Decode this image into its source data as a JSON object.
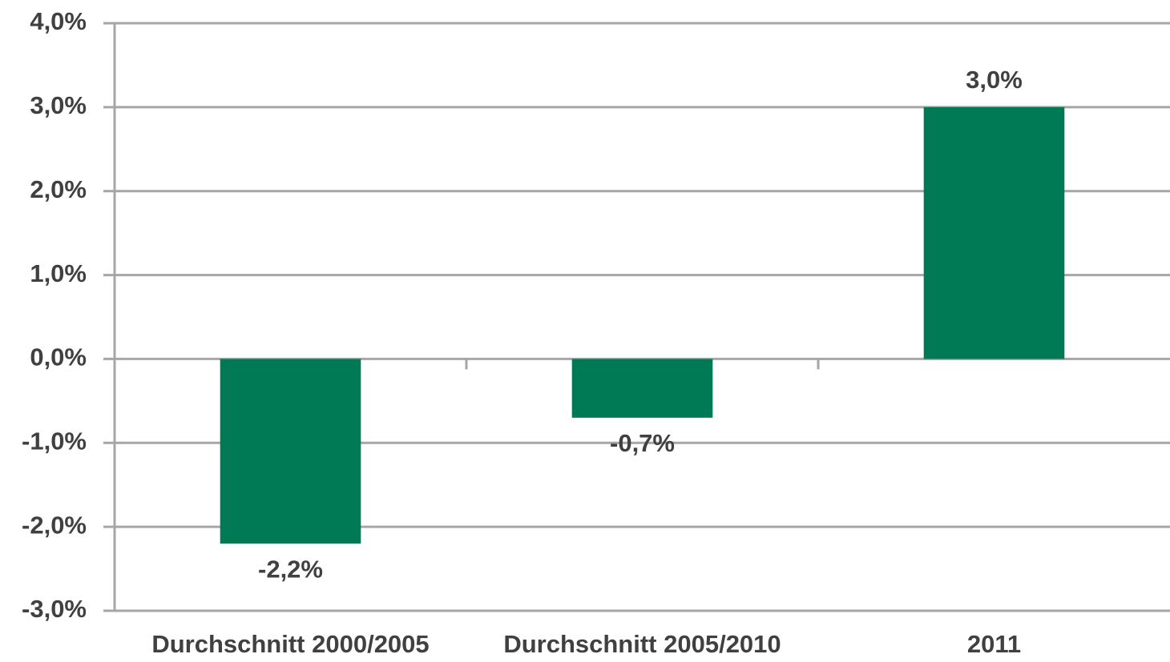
{
  "chart_data": {
    "type": "bar",
    "categories": [
      "Durchschnitt 2000/2005",
      "Durchschnitt 2005/2010",
      "2011"
    ],
    "values": [
      -2.2,
      -0.7,
      3.0
    ],
    "value_labels": [
      "-2,2%",
      "-0,7%",
      "3,0%"
    ],
    "color": "#007a55",
    "ylim": [
      -3,
      4
    ],
    "yticks": [
      {
        "value": -3,
        "label": "-3,0%"
      },
      {
        "value": -2,
        "label": "-2,0%"
      },
      {
        "value": -1,
        "label": "-1,0%"
      },
      {
        "value": 0,
        "label": "0,0%"
      },
      {
        "value": 1,
        "label": "1,0%"
      },
      {
        "value": 2,
        "label": "2,0%"
      },
      {
        "value": 3,
        "label": "3,0%"
      },
      {
        "value": 4,
        "label": "4,0%"
      }
    ],
    "grid": true
  }
}
